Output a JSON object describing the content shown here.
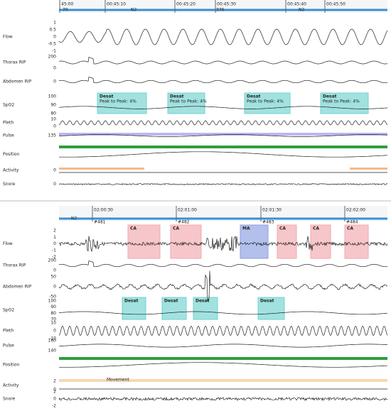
{
  "panels": [
    {
      "time_labels": [
        "45:00",
        "00:45:10",
        "00:45:20",
        "00:45:30",
        "00:45:40",
        "00:45:50"
      ],
      "epoch_labels": [
        "70",
        "376"
      ],
      "stage_labels": [
        "N2",
        "N2"
      ],
      "channels": [
        {
          "label": "Flow",
          "ticks": [
            "1",
            "0.5",
            "0",
            "-0.5",
            "-1"
          ]
        },
        {
          "label": "Thorax RIP",
          "ticks": [
            "200",
            "0"
          ]
        },
        {
          "label": "Abdomen RIP",
          "ticks": [
            "0"
          ]
        },
        {
          "label": "SpO2",
          "ticks": [
            "100",
            "90",
            "80"
          ]
        },
        {
          "label": "Pleth",
          "ticks": [
            "10",
            "0"
          ]
        },
        {
          "label": "Pulse",
          "ticks": [
            "135"
          ]
        },
        {
          "label": "Position",
          "ticks": []
        },
        {
          "label": "Activity",
          "ticks": [
            "0"
          ]
        },
        {
          "label": "Snore",
          "ticks": [
            "0"
          ]
        }
      ],
      "events": [
        {
          "label": "Desat",
          "detail": "Peak to Peak: 4%"
        },
        {
          "label": "Desat",
          "detail": "Peak to Peak: 4%"
        },
        {
          "label": "Desat",
          "detail": "Peak to Peak: 4%"
        },
        {
          "label": "Desat",
          "detail": "Peak to Peak: 4%"
        }
      ]
    },
    {
      "time_labels": [
        "02:00:30",
        "02:01:00",
        "02:01:30",
        "02:02:00"
      ],
      "epoch_labels": [
        "#481",
        "#482",
        "#483",
        "#484"
      ],
      "stage_labels": [
        "N2"
      ],
      "channels": [
        {
          "label": "Flow",
          "ticks": [
            "2",
            "1",
            "0",
            "-1",
            "-2"
          ]
        },
        {
          "label": "Thorax RIP",
          "ticks": [
            "200",
            "0"
          ]
        },
        {
          "label": "Abdomen RIP",
          "ticks": [
            "50",
            "0",
            "-50"
          ]
        },
        {
          "label": "SpO2",
          "ticks": [
            "100",
            "90",
            "80",
            "70"
          ]
        },
        {
          "label": "Pleth",
          "ticks": [
            "10",
            "0",
            "-10"
          ]
        },
        {
          "label": "Pulse",
          "ticks": [
            "160",
            "140"
          ]
        },
        {
          "label": "Position",
          "ticks": []
        },
        {
          "label": "Activity",
          "ticks": [
            "2",
            "0"
          ]
        },
        {
          "label": "Snore",
          "ticks": [
            "2",
            "0",
            "-2"
          ]
        }
      ],
      "events": [
        {
          "label": "CA"
        },
        {
          "label": "CA"
        },
        {
          "label": "MA"
        },
        {
          "label": "CA"
        },
        {
          "label": "CA"
        },
        {
          "label": "CA"
        },
        {
          "label": "Desat"
        },
        {
          "label": "Desat"
        },
        {
          "label": "Desat"
        },
        {
          "label": "Desat"
        }
      ],
      "activity_label": "Movement"
    }
  ]
}
